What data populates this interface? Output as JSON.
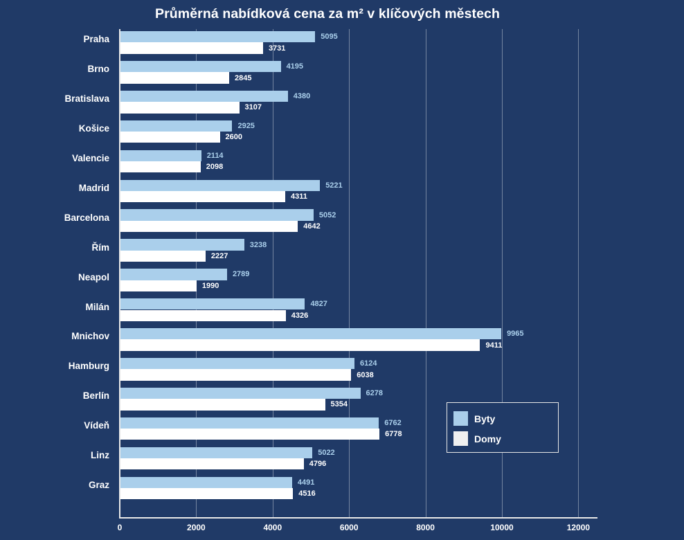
{
  "title": "Průměrná nabídková cena za m² v klíčových městech",
  "chart_data": {
    "type": "bar",
    "orientation": "horizontal",
    "title": "Průměrná nabídková cena za m² v klíčových městech",
    "categories": [
      "Praha",
      "Brno",
      "Bratislava",
      "Košice",
      "Valencie",
      "Madrid",
      "Barcelona",
      "Řím",
      "Neapol",
      "Milán",
      "Mnichov",
      "Hamburg",
      "Berlín",
      "Vídeň",
      "Linz",
      "Graz"
    ],
    "series": [
      {
        "name": "Byty",
        "color": "#aacfeb",
        "label_color": "#aacfeb",
        "values": [
          5095,
          4195,
          4380,
          2925,
          2114,
          5221,
          5052,
          3238,
          2789,
          4827,
          9965,
          6124,
          6278,
          6762,
          5022,
          4491
        ]
      },
      {
        "name": "Domy",
        "color": "#ffffff",
        "label_color": "#ffffff",
        "values": [
          3731,
          2845,
          3107,
          2600,
          2098,
          4311,
          4642,
          2227,
          1990,
          4326,
          9411,
          6038,
          5354,
          6778,
          4796,
          4516
        ]
      }
    ],
    "xticks": [
      0,
      2000,
      4000,
      6000,
      8000,
      10000,
      12000
    ],
    "xlim": [
      0,
      12500
    ],
    "grid": true,
    "legend_position": "lower right",
    "background_color": "#203a67",
    "gridline_color": "rgba(255,255,255,0.38)"
  },
  "legend": {
    "items": [
      {
        "label": "Byty",
        "color": "#aacfeb"
      },
      {
        "label": "Domy",
        "color": "#f0f0f0"
      }
    ]
  }
}
